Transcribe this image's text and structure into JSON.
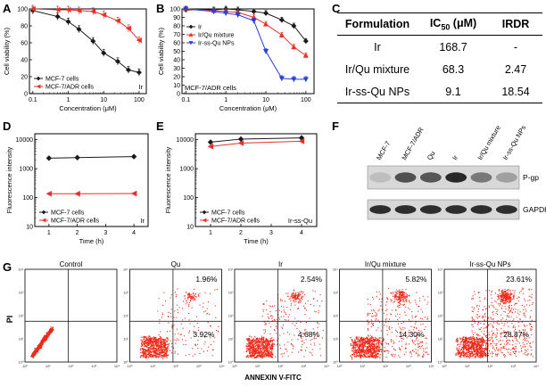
{
  "panel_letters": {
    "A": "A",
    "B": "B",
    "C": "C",
    "D": "D",
    "E": "E",
    "F": "F",
    "G": "G"
  },
  "colors": {
    "black": "#1a1a1a",
    "red": "#e8302a",
    "blue": "#2a3fd8",
    "dot": "#ee2a1a"
  },
  "chart_data": [
    {
      "id": "A",
      "type": "line",
      "xlabel": "Concentration (μM)",
      "ylabel": "Cell viability (%)",
      "xscale": "log",
      "xlim": [
        0.08,
        160
      ],
      "ylim": [
        0,
        100
      ],
      "xticks": [
        {
          "v": 0.1,
          "label": "0.1"
        },
        {
          "v": 1,
          "label": "1"
        },
        {
          "v": 10,
          "label": "10"
        },
        {
          "v": 100,
          "label": "100"
        }
      ],
      "yticks": [
        0,
        20,
        40,
        60,
        80,
        100
      ],
      "tag": "Ir",
      "legend_position": "bottom-left",
      "series": [
        {
          "name": "MCF-7 cells",
          "color": "#1a1a1a",
          "marker": "diamond",
          "x": [
            0.1,
            0.5,
            1,
            2,
            5,
            10,
            25,
            50,
            100
          ],
          "y": [
            98,
            91,
            85,
            76,
            62,
            48,
            38,
            28,
            25
          ]
        },
        {
          "name": "MCF-7/ADR cells",
          "color": "#e8302a",
          "marker": "tri-left",
          "x": [
            0.1,
            0.5,
            1,
            2,
            5,
            10,
            25,
            50,
            100
          ],
          "y": [
            100,
            99,
            99,
            98,
            97,
            93,
            86,
            77,
            63
          ]
        }
      ]
    },
    {
      "id": "B",
      "type": "line",
      "xlabel": "Concentration (μM)",
      "ylabel": "Cell viability (%)",
      "xscale": "log",
      "xlim": [
        0.08,
        160
      ],
      "ylim": [
        0,
        100
      ],
      "xticks": [
        {
          "v": 0.1,
          "label": "0.1"
        },
        {
          "v": 1,
          "label": "1"
        },
        {
          "v": 10,
          "label": "10"
        },
        {
          "v": 100,
          "label": "100"
        }
      ],
      "yticks": [
        0,
        10,
        20,
        30,
        40,
        50,
        60,
        70,
        80,
        90,
        100
      ],
      "tag": "MCF-7/ADR cells",
      "legend_position": "top-left",
      "series": [
        {
          "name": "Ir",
          "color": "#1a1a1a",
          "marker": "diamond",
          "x": [
            0.1,
            0.5,
            1,
            2,
            5,
            10,
            25,
            50,
            100
          ],
          "y": [
            99,
            99,
            100,
            99,
            97,
            95,
            87,
            80,
            62
          ]
        },
        {
          "name": "Ir/Qu mixture",
          "color": "#e8302a",
          "marker": "tri-up",
          "x": [
            0.1,
            0.5,
            1,
            2,
            5,
            10,
            25,
            50,
            100
          ],
          "y": [
            100,
            98,
            97,
            96,
            90,
            82,
            69,
            55,
            45
          ]
        },
        {
          "name": "Ir-ss-Qu NPs",
          "color": "#2a3fd8",
          "marker": "tri-down",
          "x": [
            0.1,
            0.5,
            1,
            2,
            5,
            10,
            25,
            50,
            100
          ],
          "y": [
            100,
            97,
            95,
            93,
            86,
            50,
            18,
            17,
            17
          ]
        }
      ]
    },
    {
      "id": "C",
      "type": "table",
      "columns": [
        "Formulation",
        "IC50 (μM)",
        "IRDR"
      ],
      "header": {
        "formulation": "Formulation",
        "ic50_main": "IC",
        "ic50_sub": "50",
        "ic50_unit": " (μM)",
        "irdr": "IRDR"
      },
      "rows": [
        {
          "formulation": "Ir",
          "ic50": "168.7",
          "irdr": "-"
        },
        {
          "formulation": "Ir/Qu mixture",
          "ic50": "68.3",
          "irdr": "2.47"
        },
        {
          "formulation": "Ir-ss-Qu NPs",
          "ic50": "9.1",
          "irdr": "18.54"
        }
      ]
    },
    {
      "id": "D",
      "type": "line",
      "xlabel": "Time (h)",
      "ylabel": "Fluorescence intensity",
      "yscale": "log",
      "xlim": [
        0.5,
        4.5
      ],
      "ylim": [
        10,
        16000
      ],
      "xticks": [
        {
          "v": 1,
          "label": "1"
        },
        {
          "v": 2,
          "label": "2"
        },
        {
          "v": 3,
          "label": "3"
        },
        {
          "v": 4,
          "label": "4"
        }
      ],
      "yticks": [
        {
          "v": 10,
          "label": "10"
        },
        {
          "v": 100,
          "label": "100"
        },
        {
          "v": 1000,
          "label": "1000"
        },
        {
          "v": 10000,
          "label": "10000"
        }
      ],
      "tag": "Ir",
      "legend_position": "bottom-left",
      "series": [
        {
          "name": "MCF-7 cells",
          "color": "#1a1a1a",
          "marker": "diamond",
          "x": [
            1,
            2,
            4
          ],
          "y": [
            2300,
            2400,
            2600
          ]
        },
        {
          "name": "MCF-7/ADR cells",
          "color": "#e8302a",
          "marker": "tri-left",
          "x": [
            1,
            2,
            4
          ],
          "y": [
            135,
            135,
            138
          ]
        }
      ]
    },
    {
      "id": "E",
      "type": "line",
      "xlabel": "Time (h)",
      "ylabel": "Fluorescence intensity",
      "yscale": "log",
      "xlim": [
        0.5,
        4.5
      ],
      "ylim": [
        10,
        16000
      ],
      "xticks": [
        {
          "v": 1,
          "label": "1"
        },
        {
          "v": 2,
          "label": "2"
        },
        {
          "v": 3,
          "label": "3"
        },
        {
          "v": 4,
          "label": "4"
        }
      ],
      "yticks": [
        {
          "v": 10,
          "label": "10"
        },
        {
          "v": 100,
          "label": "100"
        },
        {
          "v": 1000,
          "label": "1000"
        },
        {
          "v": 10000,
          "label": "10000"
        }
      ],
      "tag": "Ir-ss-Qu",
      "legend_position": "bottom-left",
      "series": [
        {
          "name": "MCF-7 cells",
          "color": "#1a1a1a",
          "marker": "diamond",
          "x": [
            1,
            2,
            4
          ],
          "y": [
            8200,
            10500,
            11500
          ]
        },
        {
          "name": "MCF-7/ADR cells",
          "color": "#e8302a",
          "marker": "tri-left",
          "x": [
            1,
            2,
            4
          ],
          "y": [
            5800,
            7600,
            8800
          ]
        }
      ]
    },
    {
      "id": "F",
      "type": "western_blot",
      "lanes": [
        "MCF-7",
        "MCF-7/ADR",
        "Qu",
        "Ir",
        "Ir/Qu mixture",
        "Ir-ss-Qu NPs"
      ],
      "rows": [
        {
          "label": "P-gp",
          "intensity": [
            0.2,
            0.75,
            0.72,
            0.95,
            0.55,
            0.35
          ]
        },
        {
          "label": "GAPDH",
          "intensity": [
            0.92,
            0.92,
            0.92,
            0.92,
            0.92,
            0.92
          ]
        }
      ]
    },
    {
      "id": "G",
      "type": "scatter",
      "xlabel": "ANNEXIN V-FITC",
      "ylabel": "PI",
      "axis_tick_labels": [
        "10⁰",
        "10¹",
        "10²",
        "10³",
        "10⁴"
      ],
      "panels": [
        {
          "title": "Control",
          "q_upper_right": "",
          "q_lower_right": "",
          "density": 0.0
        },
        {
          "title": "Qu",
          "q_upper_right": "1.96%",
          "q_lower_right": "3.92%",
          "density": 0.25
        },
        {
          "title": "Ir",
          "q_upper_right": "2.54%",
          "q_lower_right": "4.68%",
          "density": 0.35
        },
        {
          "title": "Ir/Qu mixture",
          "q_upper_right": "5.82%",
          "q_lower_right": "14.30%",
          "density": 0.6
        },
        {
          "title": "Ir-ss-Qu NPs",
          "q_upper_right": "23.61%",
          "q_lower_right": "28.87%",
          "density": 0.9
        }
      ]
    }
  ]
}
